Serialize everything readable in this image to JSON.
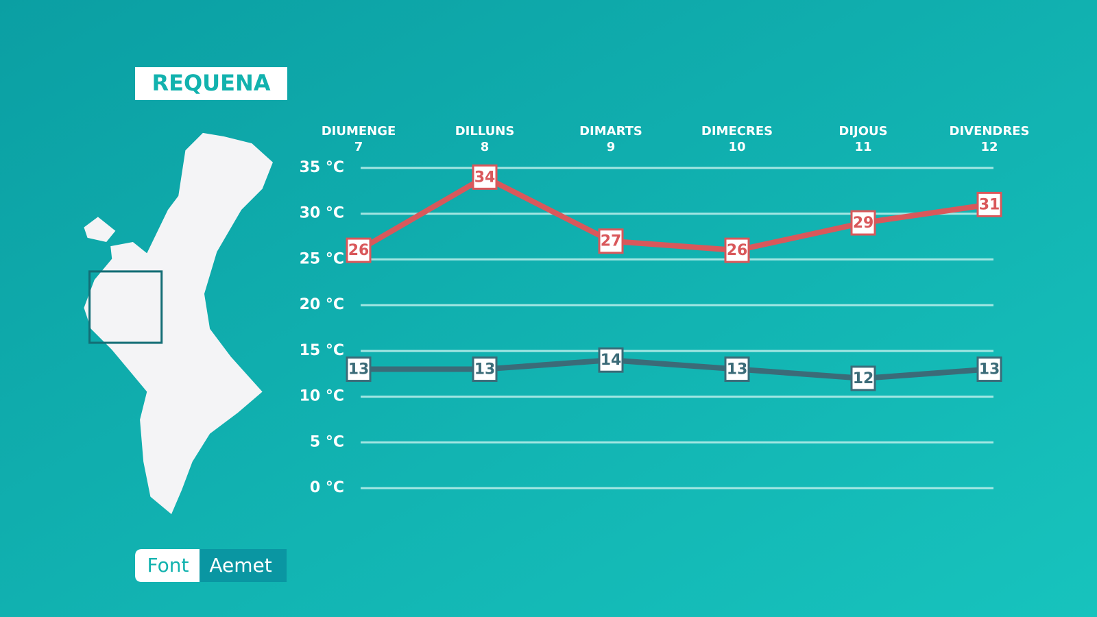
{
  "title": "REQUENA",
  "source": {
    "label": "Font",
    "name": "Aemet"
  },
  "chart_data": {
    "type": "line",
    "categories": [
      {
        "day": "DIUMENGE",
        "date": "7"
      },
      {
        "day": "DILLUNS",
        "date": "8"
      },
      {
        "day": "DIMARTS",
        "date": "9"
      },
      {
        "day": "DIMECRES",
        "date": "10"
      },
      {
        "day": "DIJOUS",
        "date": "11"
      },
      {
        "day": "DIVENDRES",
        "date": "12"
      }
    ],
    "series": [
      {
        "color": "#d9585b",
        "values": [
          26,
          34,
          27,
          26,
          29,
          31
        ]
      },
      {
        "color": "#3b6b78",
        "values": [
          13,
          13,
          14,
          13,
          12,
          13
        ]
      }
    ],
    "ylim": [
      0,
      35
    ],
    "yticks": [
      {
        "value": 0,
        "label": "0 °C"
      },
      {
        "value": 5,
        "label": "5 °C"
      },
      {
        "value": 10,
        "label": "10 °C"
      },
      {
        "value": 15,
        "label": "15 °C"
      },
      {
        "value": 20,
        "label": "20 °C"
      },
      {
        "value": 25,
        "label": "25 °C"
      },
      {
        "value": 30,
        "label": "30 °C"
      },
      {
        "value": 35,
        "label": "35 °C"
      }
    ],
    "grid": true
  }
}
